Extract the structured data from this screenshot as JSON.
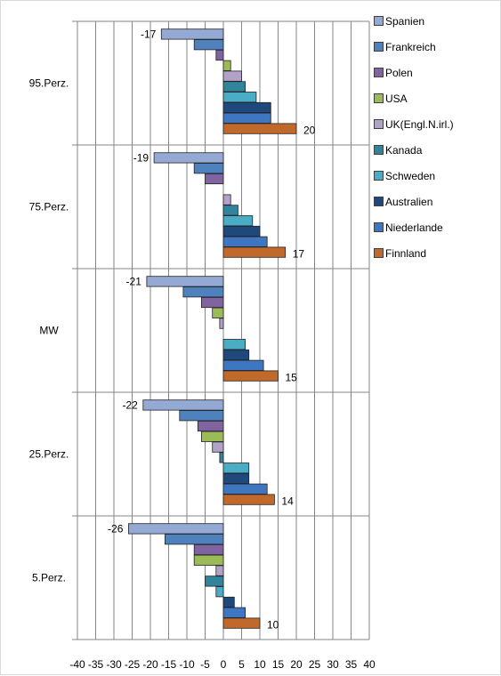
{
  "chart_data": {
    "type": "bar",
    "orientation": "horizontal",
    "categories": [
      "95.Perz.",
      "75.Perz.",
      "MW",
      "25.Perz.",
      "5.Perz."
    ],
    "series": [
      {
        "name": "Spanien",
        "color": "#95A9D5",
        "values": [
          -17,
          -19,
          -21,
          -22,
          -26
        ]
      },
      {
        "name": "Frankreich",
        "color": "#4F81BD",
        "values": [
          -8,
          -8,
          -11,
          -12,
          -16
        ]
      },
      {
        "name": "Polen",
        "color": "#8064A2",
        "values": [
          -2,
          -5,
          -6,
          -7,
          -8
        ]
      },
      {
        "name": "USA",
        "color": "#9BBB59",
        "values": [
          2,
          0,
          -3,
          -6,
          -8
        ]
      },
      {
        "name": "UK(Engl.N.irl.)",
        "color": "#B3A2C7",
        "values": [
          5,
          2,
          -1,
          -3,
          -2
        ]
      },
      {
        "name": "Kanada",
        "color": "#31849B",
        "values": [
          6,
          4,
          0,
          -1,
          -5
        ]
      },
      {
        "name": "Schweden",
        "color": "#4BACC6",
        "values": [
          9,
          8,
          6,
          7,
          -2
        ]
      },
      {
        "name": "Australien",
        "color": "#1F497D",
        "values": [
          13,
          10,
          7,
          7,
          3
        ]
      },
      {
        "name": "Niederlande",
        "color": "#3E76C2",
        "values": [
          13,
          12,
          11,
          12,
          6
        ]
      },
      {
        "name": "Finnland",
        "color": "#C0692B",
        "values": [
          20,
          17,
          15,
          14,
          10
        ]
      }
    ],
    "data_labels": [
      {
        "category": "95.Perz.",
        "labels": [
          "-17",
          "20"
        ]
      },
      {
        "category": "75.Perz.",
        "labels": [
          "-19",
          "17"
        ]
      },
      {
        "category": "MW",
        "labels": [
          "-21",
          "15"
        ]
      },
      {
        "category": "25.Perz.",
        "labels": [
          "-22",
          "14"
        ]
      },
      {
        "category": "5.Perz.",
        "labels": [
          "-26",
          "10"
        ]
      }
    ],
    "xticks": [
      "-40",
      "-35",
      "-30",
      "-25",
      "-20",
      "-15",
      "-10",
      "-5",
      "0",
      "5",
      "10",
      "15",
      "20",
      "25",
      "30",
      "35",
      "40"
    ],
    "xlim": [
      -40,
      40
    ],
    "grid": true,
    "legend_position": "right",
    "title": "",
    "xlabel": "",
    "ylabel": ""
  }
}
